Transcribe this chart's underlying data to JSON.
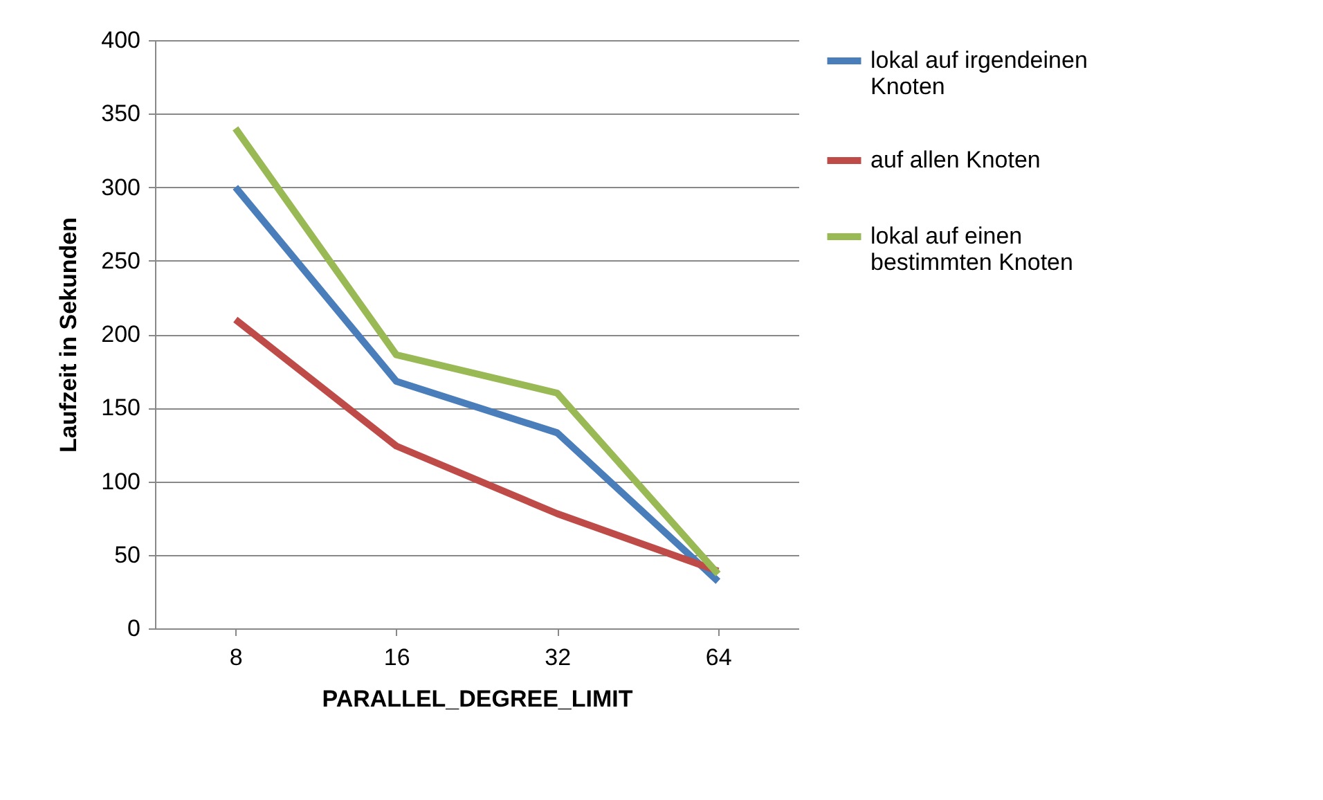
{
  "chart_data": {
    "type": "line",
    "xlabel": "PARALLEL_DEGREE_LIMIT",
    "ylabel": "Laufzeit in Sekunden",
    "categories": [
      "8",
      "16",
      "32",
      "64"
    ],
    "series": [
      {
        "name": "lokal auf irgendeinen Knoten",
        "color": "#4a7ebb",
        "values": [
          300,
          168,
          133,
          32
        ]
      },
      {
        "name": "auf allen Knoten",
        "color": "#be4b48",
        "values": [
          210,
          124,
          78,
          39
        ]
      },
      {
        "name": "lokal auf einen bestimmten Knoten",
        "color": "#98b954",
        "values": [
          340,
          186,
          160,
          37
        ]
      }
    ],
    "ylim": [
      0,
      400
    ],
    "yticks": [
      0,
      50,
      100,
      150,
      200,
      250,
      300,
      350,
      400
    ],
    "grid": "y",
    "legend": "right",
    "marker": "none",
    "line_style": "solid"
  }
}
